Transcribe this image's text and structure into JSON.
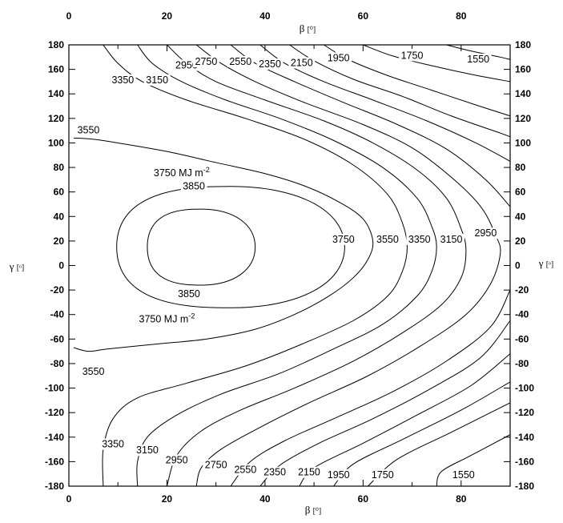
{
  "chart_data": {
    "type": "contour",
    "title": "",
    "x_axis": {
      "label": "β",
      "unit": "[⁰]",
      "range": [
        0,
        90
      ],
      "ticks": [
        "0",
        "20",
        "40",
        "60",
        "80"
      ],
      "tick_values": [
        0,
        20,
        40,
        60,
        80
      ]
    },
    "y_axis": {
      "label": "γ",
      "unit": "[ᵒ]",
      "range": [
        -180,
        180
      ],
      "ticks": [
        "180",
        "160",
        "140",
        "120",
        "100",
        "80",
        "60",
        "40",
        "20",
        "0",
        "-20",
        "-40",
        "-60",
        "-80",
        "-100",
        "-120",
        "-140",
        "-160",
        "-180"
      ],
      "tick_values": [
        180,
        160,
        140,
        120,
        100,
        80,
        60,
        40,
        20,
        0,
        -20,
        -40,
        -60,
        -80,
        -100,
        -120,
        -140,
        -160,
        -180
      ]
    },
    "unit_label": "MJ m",
    "unit_exponent": "-2",
    "levels": [
      {
        "value": 3850,
        "closed": true,
        "label_positions": [
          [
            25.5,
            63.5
          ],
          [
            24.5,
            -24.5
          ]
        ],
        "labels": [
          "3850",
          "3850"
        ]
      },
      {
        "value": 3750,
        "closed": true,
        "label_positions": [
          [
            23,
            74
          ],
          [
            56,
            20
          ],
          [
            20,
            -45
          ]
        ],
        "labels": [
          "3750 MJ m",
          "3750",
          "3750 MJ m"
        ]
      },
      {
        "value": 3550,
        "label_positions": [
          [
            4,
            109
          ],
          [
            65,
            20
          ],
          [
            5,
            -88
          ]
        ],
        "labels": [
          "3550",
          "3550",
          "3550"
        ]
      },
      {
        "value": 3350,
        "label_positions": [
          [
            11,
            150
          ],
          [
            71.5,
            20
          ],
          [
            9,
            -147
          ]
        ],
        "labels": [
          "3350",
          "3350",
          "3350"
        ]
      },
      {
        "value": 3150,
        "label_positions": [
          [
            18,
            150
          ],
          [
            78,
            20
          ],
          [
            16,
            -152
          ]
        ],
        "labels": [
          "3150",
          "3150",
          "3150"
        ]
      },
      {
        "value": 2950,
        "label_positions": [
          [
            24,
            162
          ],
          [
            85,
            25
          ],
          [
            22,
            -160
          ]
        ],
        "labels": [
          "2950",
          "2950",
          "2950"
        ]
      },
      {
        "value": 2750,
        "label_positions": [
          [
            28,
            165
          ],
          [
            30,
            -164
          ]
        ],
        "labels": [
          "2750",
          "2750"
        ]
      },
      {
        "value": 2550,
        "label_positions": [
          [
            35,
            165
          ],
          [
            36,
            -168
          ]
        ],
        "labels": [
          "2550",
          "2550"
        ]
      },
      {
        "value": 2350,
        "label_positions": [
          [
            41,
            163
          ],
          [
            42,
            -170
          ]
        ],
        "labels": [
          "2350",
          "2350"
        ]
      },
      {
        "value": 2150,
        "label_positions": [
          [
            47.5,
            164
          ],
          [
            49,
            -170
          ]
        ],
        "labels": [
          "2150",
          "2150"
        ]
      },
      {
        "value": 1950,
        "label_positions": [
          [
            55,
            168
          ],
          [
            55,
            -172
          ]
        ],
        "labels": [
          "1950",
          "1950"
        ]
      },
      {
        "value": 1750,
        "label_positions": [
          [
            70,
            170
          ],
          [
            64,
            -172
          ]
        ],
        "labels": [
          "1750",
          "1750"
        ]
      },
      {
        "value": 1550,
        "label_positions": [
          [
            83.5,
            167
          ],
          [
            80.5,
            -172
          ]
        ],
        "labels": [
          "1550",
          "1550"
        ]
      }
    ],
    "closed_contours": [
      {
        "value": 3850,
        "center": [
          27,
          15
        ],
        "x_span": [
          16,
          38
        ],
        "y_span": [
          -17,
          45
        ]
      },
      {
        "value": 3750,
        "center": [
          33,
          15
        ],
        "x_span": [
          8.5,
          55
        ],
        "y_span": [
          -36,
          63
        ]
      }
    ],
    "open_contours": [
      {
        "value": 3550,
        "points": [
          [
            1,
            104
          ],
          [
            5,
            103
          ],
          [
            10,
            100
          ],
          [
            20,
            93
          ],
          [
            30,
            84
          ],
          [
            40,
            75
          ],
          [
            48,
            65
          ],
          [
            55,
            52
          ],
          [
            60,
            38
          ],
          [
            62,
            20
          ],
          [
            61,
            5
          ],
          [
            58,
            -10
          ],
          [
            53,
            -25
          ],
          [
            46,
            -40
          ],
          [
            38,
            -52
          ],
          [
            28,
            -60
          ],
          [
            18,
            -64
          ],
          [
            8,
            -68
          ],
          [
            4,
            -70
          ],
          [
            1,
            -67
          ]
        ]
      },
      {
        "value": 3350,
        "points": [
          [
            7,
            180
          ],
          [
            10,
            165
          ],
          [
            15,
            150
          ],
          [
            24,
            135
          ],
          [
            36,
            120
          ],
          [
            48,
            103
          ],
          [
            58,
            82
          ],
          [
            65,
            58
          ],
          [
            68,
            35
          ],
          [
            69,
            15
          ],
          [
            68,
            -5
          ],
          [
            65,
            -25
          ],
          [
            58,
            -45
          ],
          [
            47,
            -65
          ],
          [
            36,
            -82
          ],
          [
            24,
            -96
          ],
          [
            14,
            -108
          ],
          [
            9,
            -125
          ],
          [
            7,
            -150
          ],
          [
            7,
            -180
          ]
        ]
      },
      {
        "value": 3150,
        "points": [
          [
            14,
            180
          ],
          [
            17,
            165
          ],
          [
            23,
            150
          ],
          [
            32,
            135
          ],
          [
            43,
            120
          ],
          [
            54,
            102
          ],
          [
            64,
            80
          ],
          [
            71,
            55
          ],
          [
            74,
            32
          ],
          [
            75,
            15
          ],
          [
            74,
            -5
          ],
          [
            71,
            -25
          ],
          [
            64,
            -48
          ],
          [
            54,
            -68
          ],
          [
            43,
            -88
          ],
          [
            31,
            -105
          ],
          [
            22,
            -122
          ],
          [
            16,
            -140
          ],
          [
            14,
            -160
          ],
          [
            14,
            -180
          ]
        ]
      },
      {
        "value": 2950,
        "points": [
          [
            20,
            180
          ],
          [
            24,
            165
          ],
          [
            30,
            150
          ],
          [
            40,
            135
          ],
          [
            52,
            118
          ],
          [
            62,
            100
          ],
          [
            71,
            78
          ],
          [
            77,
            55
          ],
          [
            80,
            30
          ],
          [
            81,
            12
          ],
          [
            80,
            -10
          ],
          [
            76,
            -32
          ],
          [
            68,
            -55
          ],
          [
            58,
            -78
          ],
          [
            46,
            -100
          ],
          [
            35,
            -118
          ],
          [
            27,
            -135
          ],
          [
            22,
            -155
          ],
          [
            20,
            -180
          ]
        ]
      },
      {
        "value": 2750,
        "points": [
          [
            26,
            180
          ],
          [
            31,
            165
          ],
          [
            38,
            150
          ],
          [
            48,
            133
          ],
          [
            60,
            115
          ],
          [
            70,
            96
          ],
          [
            78,
            72
          ],
          [
            84,
            48
          ],
          [
            87,
            25
          ],
          [
            88,
            10
          ],
          [
            86,
            -15
          ],
          [
            81,
            -40
          ],
          [
            72,
            -65
          ],
          [
            61,
            -90
          ],
          [
            49,
            -112
          ],
          [
            39,
            -132
          ],
          [
            31,
            -150
          ],
          [
            27,
            -165
          ],
          [
            26,
            -180
          ]
        ]
      },
      {
        "value": 2550,
        "points": [
          [
            33,
            180
          ],
          [
            38,
            165
          ],
          [
            46,
            150
          ],
          [
            56,
            133
          ],
          [
            67,
            115
          ],
          [
            77,
            95
          ],
          [
            85,
            70
          ],
          [
            90,
            48
          ]
        ]
      },
      {
        "value": 2550,
        "points": [
          [
            90,
            -20
          ],
          [
            86,
            -50
          ],
          [
            77,
            -78
          ],
          [
            66,
            -103
          ],
          [
            54,
            -125
          ],
          [
            44,
            -143
          ],
          [
            37,
            -160
          ],
          [
            33,
            -180
          ]
        ]
      },
      {
        "value": 2350,
        "points": [
          [
            39,
            180
          ],
          [
            44,
            165
          ],
          [
            52,
            150
          ],
          [
            62,
            135
          ],
          [
            73,
            118
          ],
          [
            83,
            100
          ],
          [
            90,
            85
          ]
        ]
      },
      {
        "value": 2350,
        "points": [
          [
            90,
            -45
          ],
          [
            84,
            -75
          ],
          [
            74,
            -100
          ],
          [
            62,
            -125
          ],
          [
            51,
            -145
          ],
          [
            43,
            -163
          ],
          [
            39,
            -180
          ]
        ]
      },
      {
        "value": 2150,
        "points": [
          [
            45,
            180
          ],
          [
            50,
            167
          ],
          [
            58,
            152
          ],
          [
            68,
            138
          ],
          [
            78,
            122
          ],
          [
            88,
            108
          ],
          [
            90,
            105
          ]
        ]
      },
      {
        "value": 2150,
        "points": [
          [
            90,
            -72
          ],
          [
            82,
            -98
          ],
          [
            71,
            -122
          ],
          [
            60,
            -145
          ],
          [
            50,
            -165
          ],
          [
            47,
            -180
          ]
        ]
      },
      {
        "value": 1950,
        "points": [
          [
            52,
            180
          ],
          [
            57,
            168
          ],
          [
            65,
            155
          ],
          [
            74,
            143
          ],
          [
            83,
            131
          ],
          [
            90,
            122
          ]
        ]
      },
      {
        "value": 1950,
        "points": [
          [
            90,
            -95
          ],
          [
            80,
            -118
          ],
          [
            68,
            -142
          ],
          [
            58,
            -162
          ],
          [
            54,
            -180
          ]
        ]
      },
      {
        "value": 1750,
        "points": [
          [
            60,
            180
          ],
          [
            66,
            171
          ],
          [
            74,
            163
          ],
          [
            82,
            156
          ],
          [
            90,
            150
          ]
        ]
      },
      {
        "value": 1750,
        "points": [
          [
            90,
            -112
          ],
          [
            78,
            -136
          ],
          [
            67,
            -158
          ],
          [
            61,
            -180
          ]
        ]
      },
      {
        "value": 1550,
        "points": [
          [
            77,
            180
          ],
          [
            82,
            175
          ],
          [
            88,
            170
          ],
          [
            90,
            168
          ]
        ]
      },
      {
        "value": 1550,
        "points": [
          [
            90,
            -138
          ],
          [
            82,
            -155
          ],
          [
            76,
            -168
          ],
          [
            75,
            -180
          ]
        ]
      }
    ]
  }
}
